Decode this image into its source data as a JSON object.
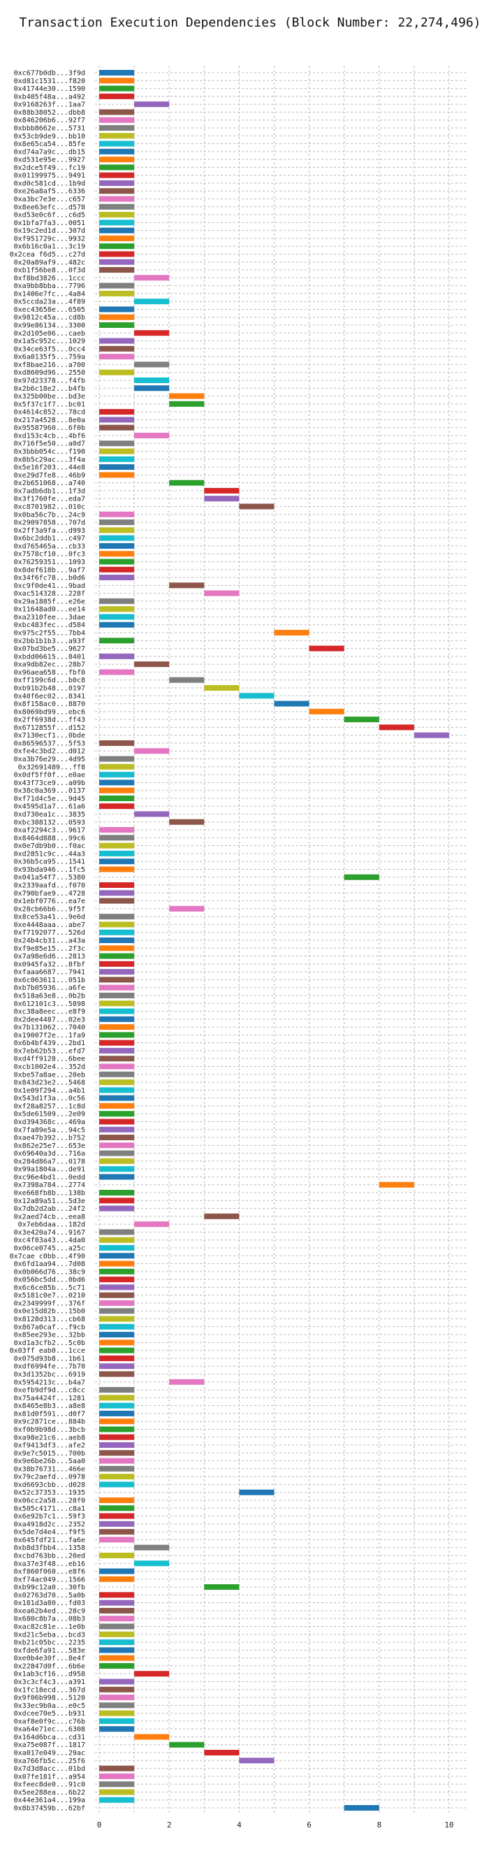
{
  "chart_data": {
    "type": "bar",
    "orientation": "horizontal",
    "title": "Transaction Execution Dependencies (Block Number: 22,274,496)",
    "xlabel": "",
    "ylabel": "",
    "xlim": [
      0,
      10.5
    ],
    "xticks": [
      0,
      2,
      4,
      6,
      8,
      10
    ],
    "grid": true,
    "palette": [
      "#1f77b4",
      "#ff7f0e",
      "#2ca02c",
      "#d62728",
      "#9467bd",
      "#8c564b",
      "#e377c2",
      "#7f7f7f",
      "#bcbd22",
      "#17becf"
    ],
    "transactions": [
      [
        "0xc677b0db...3f9d",
        0
      ],
      [
        "0xd81c1531...f820",
        0
      ],
      [
        "0x41744e30...1590",
        0
      ],
      [
        "0xb405f48a...a492",
        0
      ],
      [
        "0x9168263f...1aa7",
        1
      ],
      [
        "0x88b38052...dbb8",
        0
      ],
      [
        "0x846206b6...92f7",
        0
      ],
      [
        "0xbbb8662e...5731",
        0
      ],
      [
        "0x53cb9de9...bb10",
        0
      ],
      [
        "0x8e65ca54...85fe",
        0
      ],
      [
        "0xd74a7a9c...db15",
        0
      ],
      [
        "0xd531e95e...9927",
        0
      ],
      [
        "0x2dce5f49...fc19",
        0
      ],
      [
        "0x01199975...9491",
        0
      ],
      [
        "0xd0c581cd...1b9d",
        0
      ],
      [
        "0xe26a8af5...6336",
        0
      ],
      [
        "0xa3bc7e3e...c657",
        0
      ],
      [
        "0x8ee63efc...d578",
        0
      ],
      [
        "0xd53e0c6f...c6d5",
        0
      ],
      [
        "0x1bfa7fa3...0051",
        0
      ],
      [
        "0x19c2ed1d...307d",
        0
      ],
      [
        "0xf951729c...9932",
        0
      ],
      [
        "0x6b16c0a1...3c19",
        0
      ],
      [
        "0x2cea f6d5...c27d",
        0
      ],
      [
        "0x20a89af9...482c",
        0
      ],
      [
        "0xb1f56be8...0f3d",
        0
      ],
      [
        "0xf8bd3826...1ccc",
        1
      ],
      [
        "0xa9bb8bba...7796",
        0
      ],
      [
        "0x1406e7fc...4a84",
        0
      ],
      [
        "0x5ccda23a...4f89",
        1
      ],
      [
        "0xec43658e...6505",
        0
      ],
      [
        "0x9812c45a...cd8b",
        0
      ],
      [
        "0x99e86134...3300",
        0
      ],
      [
        "0x2d105e06...caeb",
        1
      ],
      [
        "0x1a5c952c...1029",
        0
      ],
      [
        "0x34ce63f5...0cc4",
        0
      ],
      [
        "0x6a0135f5...759a",
        0
      ],
      [
        "0xf8bae216...a700",
        1
      ],
      [
        "0xd8609d96...2550",
        0
      ],
      [
        "0x97d23378...f4fb",
        1
      ],
      [
        "0x2b6c18e2...b4fb",
        1
      ],
      [
        "0x325b00be...bd3e",
        2
      ],
      [
        "0x5f37c1f7...bc01",
        2
      ],
      [
        "0x4614c852...78cd",
        0
      ],
      [
        "0x217a4528...8e0a",
        0
      ],
      [
        "0x95587960...6f0b",
        0
      ],
      [
        "0xd153c4cb...4bf6",
        1
      ],
      [
        "0x716f5e50...a0d7",
        0
      ],
      [
        "0x3bbb054c...f190",
        0
      ],
      [
        "0x8b5c29ac...3f4a",
        0
      ],
      [
        "0x5e16f203...44e8",
        0
      ],
      [
        "0xe29d7fe8...46b9",
        0
      ],
      [
        "0x2b651068...a740",
        2
      ],
      [
        "0x7adb6db1...1f3d",
        3
      ],
      [
        "0x3f1760fe...eda7",
        3
      ],
      [
        "0xc8701982...010c",
        4
      ],
      [
        "0x0ba56c7b...24c9",
        0
      ],
      [
        "0x29097858...707d",
        0
      ],
      [
        "0x2ff3a9fa...d993",
        0
      ],
      [
        "0x6bc2ddb1...c497",
        0
      ],
      [
        "0xd765465a...cb33",
        0
      ],
      [
        "0x7578cf10...0fc3",
        0
      ],
      [
        "0x76259351...1093",
        0
      ],
      [
        "0x8def618b...9af7",
        0
      ],
      [
        "0x34f6fc78...b0d6",
        0
      ],
      [
        "0xc9f0de41...9bad",
        2
      ],
      [
        "0xac514328...228f",
        3
      ],
      [
        "0x29a1885f...e26e",
        0
      ],
      [
        "0x11648ad0...ee14",
        0
      ],
      [
        "0xa2310fee...3dae",
        0
      ],
      [
        "0xbc483fec...d584",
        0
      ],
      [
        "0x975c2f55...7bb4",
        5
      ],
      [
        "0x2bb1b1b3...a93f",
        0
      ],
      [
        "0x07bd3be5...9627",
        6
      ],
      [
        "0xbdd06615...8401",
        0
      ],
      [
        "0xa9db82ec...28b7",
        1
      ],
      [
        "0x96aea658...fbf0",
        0
      ],
      [
        "0xff199c6d...b0c8",
        2
      ],
      [
        "0xb91b2b48...0197",
        3
      ],
      [
        "0x40f6ec02...8341",
        4
      ],
      [
        "0x8f158ac0...8870",
        5
      ],
      [
        "0x8069bd99...ebc6",
        6
      ],
      [
        "0x2ff6938d...ff43",
        7
      ],
      [
        "0x6712855f...d152",
        8
      ],
      [
        "0x7130ecf1...0bde",
        9
      ],
      [
        "0x86596537...5f53",
        0
      ],
      [
        "0xfe4c3bd2...d012",
        1
      ],
      [
        "0xa3b76e29...4d95",
        0
      ],
      [
        "0x32691489...ff8",
        0
      ],
      [
        "0x0df5ff0f...e0ae",
        0
      ],
      [
        "0x43f73ce9...a09b",
        0
      ],
      [
        "0x38c0a369...0137",
        0
      ],
      [
        "0xf71d4c5e...9d45",
        0
      ],
      [
        "0x4595d1a7...61a6",
        0
      ],
      [
        "0xd730ea1c...3835",
        1
      ],
      [
        "0xbc388132...0593",
        2
      ],
      [
        "0xaf2294c3...9617",
        0
      ],
      [
        "0x8464d888...99c6",
        0
      ],
      [
        "0x0e7db9b0...f0ac",
        0
      ],
      [
        "0xd2851c9c...44a3",
        0
      ],
      [
        "0x36b5ca95...1541",
        0
      ],
      [
        "0x93bda946...1fc5",
        0
      ],
      [
        "0x041a54f7...5380",
        7
      ],
      [
        "0x2339aafd...f070",
        0
      ],
      [
        "0x790bfae9...4728",
        0
      ],
      [
        "0x1ebf0776...ea7e",
        0
      ],
      [
        "0x28cb66b6...9f5f",
        2
      ],
      [
        "0x8ce53a41...9e6d",
        0
      ],
      [
        "0xe4448aaa...abe7",
        0
      ],
      [
        "0xf7192077...526d",
        0
      ],
      [
        "0x24b4cb31...a43a",
        0
      ],
      [
        "0xf9e85e15...2f3c",
        0
      ],
      [
        "0x7a98e6d6...2813",
        0
      ],
      [
        "0x0945fa32...8fbf",
        0
      ],
      [
        "0xfaaa6687...7941",
        0
      ],
      [
        "0x6c063611...051b",
        0
      ],
      [
        "0xb7b05936...a6fe",
        0
      ],
      [
        "0x518a63e8...0b2b",
        0
      ],
      [
        "0x612101c3...5898",
        0
      ],
      [
        "0xc38a8eec...e8f9",
        0
      ],
      [
        "0x2dee4487...02e3",
        0
      ],
      [
        "0x7b131062...7040",
        0
      ],
      [
        "0x19007f2e...1fa9",
        0
      ],
      [
        "0x6b4bf439...2bd1",
        0
      ],
      [
        "0x7eb62b53...efd7",
        0
      ],
      [
        "0xd4ff9128...6bee",
        0
      ],
      [
        "0xcb1002e4...352d",
        0
      ],
      [
        "0xbe57a8ae...20eb",
        0
      ],
      [
        "0x843d23e2...5468",
        0
      ],
      [
        "0x1e09f294...a4b1",
        0
      ],
      [
        "0x543d1f3a...0c56",
        0
      ],
      [
        "0xf28a8257...1c8d",
        0
      ],
      [
        "0x5de61509...2e09",
        0
      ],
      [
        "0xd394368c...469a",
        0
      ],
      [
        "0x7fa89e5a...94c5",
        0
      ],
      [
        "0xae47b392...b752",
        0
      ],
      [
        "0x862e25e7...653e",
        0
      ],
      [
        "0x69640a3d...716a",
        0
      ],
      [
        "0x284d86a7...0178",
        0
      ],
      [
        "0x99a1804a...de91",
        0
      ],
      [
        "0xc96e4bd1...0edd",
        0
      ],
      [
        "0x7398a784...2774",
        8
      ],
      [
        "0xe668fb8b...138b",
        0
      ],
      [
        "0x12a89a51...5d3e",
        0
      ],
      [
        "0x7db2d2ab...24f2",
        0
      ],
      [
        "0x2aed74cb...eea8",
        3
      ],
      [
        "0x7eb6daa...182d",
        1
      ],
      [
        "0x3e420a74...9167",
        0
      ],
      [
        "0xc4f03a43...4da0",
        0
      ],
      [
        "0x06ce0745...a25c",
        0
      ],
      [
        "0x7cae c0bb...4f90",
        0
      ],
      [
        "0x6fd1aa94...7d08",
        0
      ],
      [
        "0x0b066d76...38c9",
        0
      ],
      [
        "0x056bc5dd...0bd6",
        0
      ],
      [
        "0x6c6ce85b...5c71",
        0
      ],
      [
        "0x5181c0e7...0210",
        0
      ],
      [
        "0x2349999f...376f",
        0
      ],
      [
        "0x0e15d82b...15b0",
        0
      ],
      [
        "0x8128d313...cb68",
        0
      ],
      [
        "0x867a0caf...f9cb",
        0
      ],
      [
        "0x85ee293e...32bb",
        0
      ],
      [
        "0xd1a3cfb2...5c0b",
        0
      ],
      [
        "0x03ff eab0...1cce",
        0
      ],
      [
        "0x075d93b8...1b61",
        0
      ],
      [
        "0xdf6994fe...7b70",
        0
      ],
      [
        "0x3d1352bc...6919",
        0
      ],
      [
        "0x5954213c...b4a7",
        2
      ],
      [
        "0xefb9df9d...c8cc",
        0
      ],
      [
        "0x75a4424f...1281",
        0
      ],
      [
        "0x8465e8b3...a8e8",
        0
      ],
      [
        "0x81d0f591...d0f7",
        0
      ],
      [
        "0x9c2871ce...884b",
        0
      ],
      [
        "0xf0b9b98d...3bcb",
        0
      ],
      [
        "0xa98e21c6...aeb8",
        0
      ],
      [
        "0xf9413df3...afe2",
        0
      ],
      [
        "0x9e7c5015...700b",
        0
      ],
      [
        "0x9e6be26b...5aa0",
        0
      ],
      [
        "0x38b76731...466e",
        0
      ],
      [
        "0x79c2aefd...0978",
        0
      ],
      [
        "0xd6693cbb...d028",
        0
      ],
      [
        "0x52c37353...1935",
        4
      ],
      [
        "0x06cc2a58...28f0",
        0
      ],
      [
        "0x505c4171...c8a1",
        0
      ],
      [
        "0x6e92b7c1...59f3",
        0
      ],
      [
        "0xa4918d2c...2352",
        0
      ],
      [
        "0x5de7d4e4...f9f5",
        0
      ],
      [
        "0x645fdf21...fa6e",
        0
      ],
      [
        "0xb8d3fbb4...1358",
        1
      ],
      [
        "0xcbd763bb...20ed",
        0
      ],
      [
        "0xa37e3f48...eb16",
        1
      ],
      [
        "0xf860f060...e8f6",
        0
      ],
      [
        "0xf74ac049...1566",
        0
      ],
      [
        "0xb99c12a0...30fb",
        3
      ],
      [
        "0x02763d70...5a0b",
        0
      ],
      [
        "0x181d3a80...fd03",
        0
      ],
      [
        "0xea62b4ed...28c9",
        0
      ],
      [
        "0x680c8b7a...08b3",
        0
      ],
      [
        "0xac82c81e...1e0b",
        0
      ],
      [
        "0xd21c5eba...bcd3",
        0
      ],
      [
        "0xb21c05bc...2235",
        0
      ],
      [
        "0xfde6fa91...583e",
        0
      ],
      [
        "0xe0b4e30f...8e4f",
        0
      ],
      [
        "0x22847d0f...6b6e",
        0
      ],
      [
        "0x1ab3cf16...d958",
        1
      ],
      [
        "0x3c3cf4c3...a391",
        0
      ],
      [
        "0x1fc18ecd...367d",
        0
      ],
      [
        "0x9f06b998...5120",
        0
      ],
      [
        "0x33ec9b0a...e0c5",
        0
      ],
      [
        "0xdcee70e5...b931",
        0
      ],
      [
        "0xaf8e0f9c...c76b",
        0
      ],
      [
        "0xa64e71ec...6308",
        0
      ],
      [
        "0x164d6bca...cd31",
        1
      ],
      [
        "0xa75e087f...1817",
        2
      ],
      [
        "0xa017e049...29ac",
        3
      ],
      [
        "0xa766fb5c...25f6",
        4
      ],
      [
        "0x7d3d8acc...01bd",
        0
      ],
      [
        "0x07fe181f...a954",
        0
      ],
      [
        "0xfeec8de0...91c0",
        0
      ],
      [
        "0x5ee288ea...6b22",
        0
      ],
      [
        "0x44e361a4...199a",
        0
      ],
      [
        "0x8b37459b...62bf",
        7
      ]
    ]
  }
}
